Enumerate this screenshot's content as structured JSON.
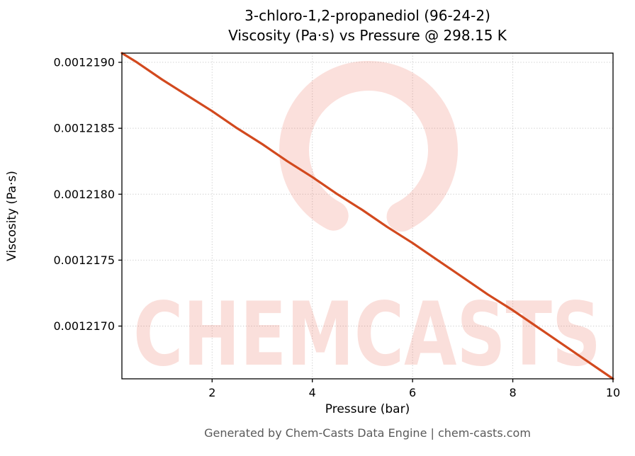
{
  "title": "3-chloro-1,2-propanediol (96-24-2)\nViscosity (Pa·s) vs Pressure @ 298.15 K",
  "footer": "Generated by Chem-Casts Data Engine | chem-casts.com",
  "watermark": {
    "text": "CHEMCASTS",
    "color": "#e8543c",
    "text_opacity": 0.18,
    "circle_opacity": 0.18
  },
  "chart_data": {
    "type": "line",
    "title": "3-chloro-1,2-propanediol (96-24-2) — Viscosity (Pa·s) vs Pressure @ 298.15 K",
    "xlabel": "Pressure (bar)",
    "ylabel": "Viscosity (Pa·s)",
    "legend": "none",
    "grid": true,
    "line_color": "#d2491e",
    "xlim": [
      0.2,
      10
    ],
    "ylim": [
      0.0012166,
      0.00121907
    ],
    "xticks": {
      "values": [
        2,
        4,
        6,
        8,
        10
      ],
      "labels": [
        "2",
        "4",
        "6",
        "8",
        "10"
      ]
    },
    "yticks": {
      "values": [
        0.001219,
        0.0012185,
        0.001218,
        0.0012175,
        0.001217
      ],
      "labels": [
        "0.0012190",
        "0.0012185",
        "0.0012180",
        "0.0012175",
        "0.0012170"
      ]
    },
    "x": [
      0.2,
      0.5,
      1.0,
      1.5,
      2.0,
      2.5,
      3.0,
      3.5,
      4.0,
      4.5,
      5.0,
      5.5,
      6.0,
      6.5,
      7.0,
      7.5,
      8.0,
      8.5,
      9.0,
      9.5,
      10.0
    ],
    "y": [
      0.00121907,
      0.001219,
      0.00121887,
      0.00121875,
      0.00121863,
      0.0012185,
      0.00121838,
      0.00121825,
      0.00121813,
      0.001218,
      0.00121788,
      0.00121775,
      0.00121763,
      0.0012175,
      0.00121737,
      0.00121724,
      0.00121712,
      0.00121699,
      0.00121686,
      0.00121673,
      0.0012166
    ]
  }
}
